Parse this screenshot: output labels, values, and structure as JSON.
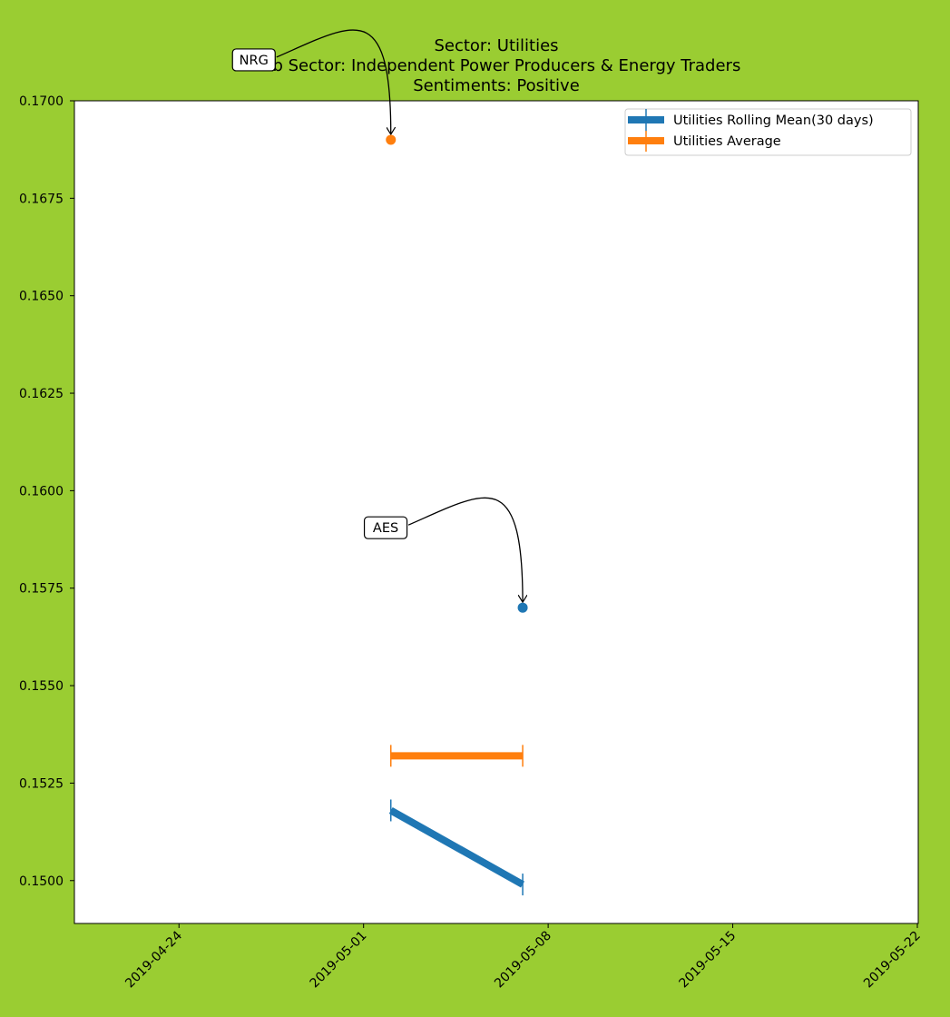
{
  "colors": {
    "background": "#9acd32",
    "plot_area": "#ffffff",
    "rolling_mean": "#1f77b4",
    "average": "#ff7f0e"
  },
  "chart_data": {
    "type": "line",
    "title_lines": [
      "Sector:  Utilities",
      "Sub Sector:  Independent Power Producers & Energy Traders",
      "Sentiments:  Positive"
    ],
    "xlabel": "",
    "ylabel": "",
    "xlim": [
      "2019-04-20",
      "2019-05-22"
    ],
    "ylim": [
      0.1489,
      0.17
    ],
    "x_ticks": [
      "2019-04-24",
      "2019-05-01",
      "2019-05-08",
      "2019-05-15",
      "2019-05-22"
    ],
    "y_ticks": [
      "0.1500",
      "0.1525",
      "0.1550",
      "0.1575",
      "0.1600",
      "0.1625",
      "0.1650",
      "0.1675",
      "0.1700"
    ],
    "grid": false,
    "legend_position": "top-right",
    "series": [
      {
        "name": "Utilities Rolling Mean(30 days)",
        "color_key": "rolling_mean",
        "x": [
          "2019-05-02",
          "2019-05-07"
        ],
        "y": [
          0.1518,
          0.1499
        ]
      },
      {
        "name": "Utilities Average",
        "color_key": "average",
        "x": [
          "2019-05-02",
          "2019-05-07"
        ],
        "y": [
          0.1532,
          0.1532
        ]
      }
    ],
    "points": [
      {
        "label": "NRG",
        "x": "2019-05-02",
        "y": 0.169,
        "color_key": "average"
      },
      {
        "label": "AES",
        "x": "2019-05-07",
        "y": 0.157,
        "color_key": "rolling_mean"
      }
    ]
  }
}
